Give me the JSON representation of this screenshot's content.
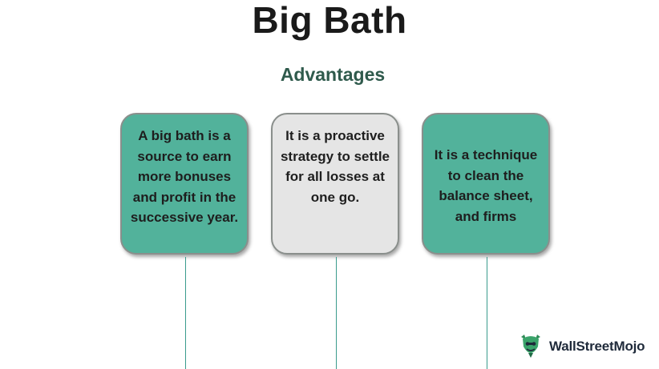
{
  "title": "Big Bath",
  "subtitle": "Advantages",
  "cards": [
    {
      "text": "A big bath is a source to earn more bonuses and profit in the successive year."
    },
    {
      "text": "It is a proactive strategy to settle for all losses at one go."
    },
    {
      "text": "It is a technique to clean the balance sheet, and firms"
    }
  ],
  "colors": {
    "card_green": "#52b29b",
    "card_grey": "#e5e5e5",
    "subtitle": "#2f5a4c",
    "stem": "#3a9b8d"
  },
  "logo": {
    "text": "WallStreetMojo",
    "icon": "wallstreetmojo-logo-icon"
  }
}
